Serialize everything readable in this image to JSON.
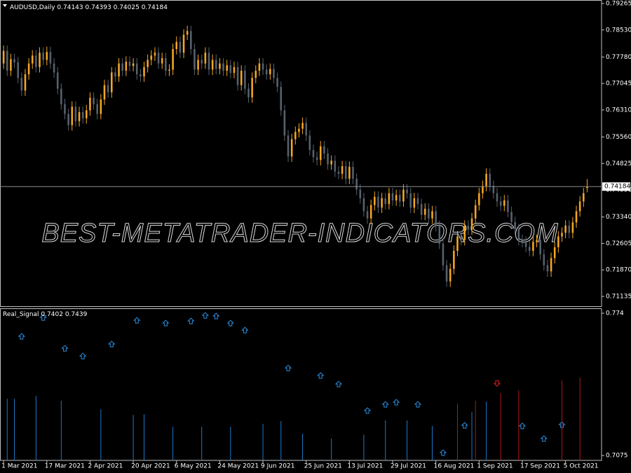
{
  "chart_data": [
    {
      "type": "candlestick",
      "title": "AUDUSD,Daily",
      "watermark": "BEST-METATRADER-INDICATORS.COM",
      "bull_color": "#f5a623",
      "bear_color": "#56626e",
      "ylim": [
        0.70863,
        0.79323
      ],
      "xlim": [
        -1,
        166
      ],
      "yticks": [
        0.79265,
        {
          "value": 0.7853,
          "label": "0.78530"
        },
        {
          "value": 0.7778,
          "label": "0.77780"
        },
        0.77045,
        {
          "value": 0.7631,
          "label": "0.76310"
        },
        {
          "value": 0.7556,
          "label": "0.75560"
        },
        0.74825,
        {
          "value": 0.7409,
          "label": "0.74090"
        },
        {
          "value": 0.7334,
          "label": "0.73340"
        },
        0.72605,
        {
          "value": 0.7187,
          "label": "0.71870"
        },
        0.71135
      ],
      "xticks": [
        {
          "value": 0,
          "label": "1 Mar 2021"
        },
        {
          "value": 12,
          "label": "17 Mar 2021"
        },
        {
          "value": 24,
          "label": "2 Apr 2021"
        },
        {
          "value": 36,
          "label": "20 Apr 2021"
        },
        {
          "value": 48,
          "label": "6 May 2021"
        },
        {
          "value": 60,
          "label": "24 May 2021"
        },
        {
          "value": 72,
          "label": "9 Jun 2021"
        },
        {
          "value": 84,
          "label": "25 Jun 2021"
        },
        {
          "value": 96,
          "label": "13 Jul 2021"
        },
        {
          "value": 108,
          "label": "29 Jul 2021"
        },
        {
          "value": 120,
          "label": "16 Aug 2021"
        },
        {
          "value": 132,
          "label": "1 Sep 2021"
        },
        {
          "value": 144,
          "label": "17 Sep 2021"
        },
        {
          "value": 156,
          "label": "5 Oct 2021"
        }
      ],
      "open": [
        0.776,
        0.7795,
        0.774,
        0.7772,
        0.7763,
        0.772,
        0.7685,
        0.773,
        0.776,
        0.7782,
        0.775,
        0.779,
        0.777,
        0.7792,
        0.776,
        0.7735,
        0.769,
        0.7647,
        0.762,
        0.7589,
        0.764,
        0.76,
        0.7625,
        0.7608,
        0.763,
        0.7665,
        0.7647,
        0.762,
        0.766,
        0.77,
        0.768,
        0.7735,
        0.7724,
        0.776,
        0.774,
        0.7765,
        0.7753,
        0.776,
        0.773,
        0.7724,
        0.775,
        0.777,
        0.7782,
        0.779,
        0.776,
        0.7775,
        0.774,
        0.7743,
        0.78,
        0.782,
        0.779,
        0.784,
        0.785,
        0.78,
        0.7743,
        0.777,
        0.776,
        0.779,
        0.7743,
        0.777,
        0.7745,
        0.776,
        0.774,
        0.7755,
        0.7734,
        0.775,
        0.77,
        0.774,
        0.769,
        0.7666,
        0.772,
        0.774,
        0.776,
        0.7743,
        0.773,
        0.7745,
        0.772,
        0.7695,
        0.763,
        0.756,
        0.7502,
        0.755,
        0.757,
        0.7579,
        0.7595,
        0.756,
        0.752,
        0.75,
        0.7492,
        0.753,
        0.751,
        0.748,
        0.749,
        0.746,
        0.7454,
        0.7475,
        0.744,
        0.7473,
        0.744,
        0.741,
        0.7386,
        0.735,
        0.733,
        0.7367,
        0.739,
        0.736,
        0.7386,
        0.737,
        0.74,
        0.738,
        0.7395,
        0.7377,
        0.741,
        0.74,
        0.736,
        0.7386,
        0.737,
        0.734,
        0.7357,
        0.733,
        0.735,
        0.7309,
        0.726,
        0.72,
        0.7155,
        0.719,
        0.724,
        0.728,
        0.727,
        0.731,
        0.7299,
        0.733,
        0.7367,
        0.74,
        0.742,
        0.7454,
        0.742,
        0.74,
        0.7377,
        0.7365,
        0.738,
        0.7348,
        0.732,
        0.73,
        0.727,
        0.7265,
        0.7251,
        0.724,
        0.7265,
        0.727,
        0.723,
        0.72,
        0.7183,
        0.722,
        0.725,
        0.728,
        0.729,
        0.731,
        0.729,
        0.7319,
        0.735,
        0.7377,
        0.74143
      ],
      "high": [
        0.781,
        0.781,
        0.7787,
        0.7787,
        0.7778,
        0.7735,
        0.7745,
        0.7775,
        0.7797,
        0.7797,
        0.7805,
        0.7805,
        0.7807,
        0.7807,
        0.7775,
        0.775,
        0.7705,
        0.7662,
        0.7635,
        0.7655,
        0.7655,
        0.764,
        0.764,
        0.7645,
        0.768,
        0.768,
        0.7662,
        0.7675,
        0.7715,
        0.7715,
        0.775,
        0.775,
        0.7775,
        0.7775,
        0.778,
        0.778,
        0.7775,
        0.7775,
        0.7745,
        0.7765,
        0.7785,
        0.7797,
        0.7805,
        0.7805,
        0.779,
        0.779,
        0.7758,
        0.7815,
        0.7835,
        0.7835,
        0.7855,
        0.7865,
        0.7865,
        0.7815,
        0.7785,
        0.7785,
        0.7805,
        0.7805,
        0.7785,
        0.7785,
        0.7775,
        0.7775,
        0.777,
        0.777,
        0.7765,
        0.7765,
        0.7755,
        0.7755,
        0.7705,
        0.7735,
        0.7755,
        0.7775,
        0.7775,
        0.7758,
        0.776,
        0.776,
        0.7735,
        0.771,
        0.7645,
        0.7575,
        0.7565,
        0.7585,
        0.7594,
        0.761,
        0.761,
        0.7575,
        0.7535,
        0.7515,
        0.7545,
        0.7545,
        0.7525,
        0.7505,
        0.7505,
        0.7475,
        0.749,
        0.749,
        0.7488,
        0.7488,
        0.7455,
        0.7425,
        0.7401,
        0.7365,
        0.7382,
        0.7405,
        0.7405,
        0.7401,
        0.7401,
        0.7415,
        0.7415,
        0.741,
        0.741,
        0.7425,
        0.7425,
        0.7415,
        0.7401,
        0.7401,
        0.7385,
        0.7372,
        0.7372,
        0.7365,
        0.7365,
        0.7324,
        0.7275,
        0.7215,
        0.7205,
        0.7255,
        0.7295,
        0.7295,
        0.7325,
        0.7325,
        0.7345,
        0.7382,
        0.7415,
        0.7435,
        0.7469,
        0.7469,
        0.7435,
        0.7415,
        0.7392,
        0.7395,
        0.7395,
        0.7363,
        0.7335,
        0.7315,
        0.7285,
        0.728,
        0.7266,
        0.728,
        0.7285,
        0.7285,
        0.7245,
        0.7215,
        0.7235,
        0.7265,
        0.7295,
        0.7305,
        0.7325,
        0.7325,
        0.7334,
        0.7365,
        0.7392,
        0.7415,
        0.74393
      ],
      "low": [
        0.7745,
        0.7725,
        0.7725,
        0.7748,
        0.7705,
        0.767,
        0.767,
        0.7715,
        0.7745,
        0.7735,
        0.7735,
        0.7755,
        0.7755,
        0.7745,
        0.772,
        0.7675,
        0.7632,
        0.7605,
        0.7574,
        0.7574,
        0.7585,
        0.7585,
        0.7593,
        0.7593,
        0.7615,
        0.7632,
        0.7605,
        0.7605,
        0.7645,
        0.7665,
        0.7665,
        0.7709,
        0.7709,
        0.7725,
        0.7725,
        0.7738,
        0.7738,
        0.7715,
        0.7709,
        0.7709,
        0.7735,
        0.7755,
        0.7767,
        0.7745,
        0.7745,
        0.7725,
        0.7725,
        0.7728,
        0.7785,
        0.7775,
        0.7775,
        0.7825,
        0.7785,
        0.7728,
        0.7728,
        0.7745,
        0.7745,
        0.7728,
        0.7728,
        0.773,
        0.773,
        0.7725,
        0.7725,
        0.7719,
        0.7719,
        0.7685,
        0.7685,
        0.7675,
        0.7651,
        0.7651,
        0.7705,
        0.7725,
        0.7728,
        0.7715,
        0.7715,
        0.7705,
        0.768,
        0.7615,
        0.7545,
        0.7487,
        0.7487,
        0.7535,
        0.7555,
        0.7564,
        0.7545,
        0.7505,
        0.7485,
        0.7477,
        0.7477,
        0.7495,
        0.7465,
        0.7465,
        0.7445,
        0.7439,
        0.7439,
        0.7425,
        0.7425,
        0.7425,
        0.7395,
        0.7371,
        0.7335,
        0.7315,
        0.7315,
        0.7352,
        0.7345,
        0.7345,
        0.7355,
        0.7355,
        0.7365,
        0.7365,
        0.7362,
        0.7362,
        0.7385,
        0.7345,
        0.7345,
        0.7355,
        0.7325,
        0.7325,
        0.7315,
        0.7315,
        0.7294,
        0.7245,
        0.7185,
        0.714,
        0.714,
        0.7175,
        0.7225,
        0.7255,
        0.7255,
        0.7284,
        0.7284,
        0.7315,
        0.7352,
        0.7385,
        0.7405,
        0.7405,
        0.7385,
        0.7362,
        0.735,
        0.735,
        0.7333,
        0.7305,
        0.7285,
        0.7255,
        0.725,
        0.7236,
        0.7225,
        0.7225,
        0.725,
        0.7215,
        0.7185,
        0.7168,
        0.7168,
        0.7205,
        0.7235,
        0.7265,
        0.7275,
        0.7275,
        0.7275,
        0.7304,
        0.7335,
        0.7362,
        0.74025
      ],
      "close": [
        0.7795,
        0.774,
        0.7772,
        0.7763,
        0.772,
        0.7685,
        0.773,
        0.776,
        0.7782,
        0.775,
        0.779,
        0.777,
        0.7792,
        0.776,
        0.7735,
        0.769,
        0.7647,
        0.762,
        0.7589,
        0.764,
        0.76,
        0.7625,
        0.7608,
        0.763,
        0.7665,
        0.7647,
        0.762,
        0.766,
        0.77,
        0.768,
        0.7735,
        0.7724,
        0.776,
        0.774,
        0.7765,
        0.7753,
        0.776,
        0.773,
        0.7724,
        0.775,
        0.777,
        0.7782,
        0.779,
        0.776,
        0.7775,
        0.774,
        0.7743,
        0.78,
        0.782,
        0.779,
        0.784,
        0.785,
        0.78,
        0.7743,
        0.777,
        0.776,
        0.779,
        0.7743,
        0.777,
        0.7745,
        0.776,
        0.774,
        0.7755,
        0.7734,
        0.775,
        0.77,
        0.774,
        0.769,
        0.7666,
        0.772,
        0.774,
        0.776,
        0.7743,
        0.773,
        0.7745,
        0.772,
        0.7695,
        0.763,
        0.756,
        0.7502,
        0.755,
        0.757,
        0.7579,
        0.7595,
        0.756,
        0.752,
        0.75,
        0.7492,
        0.753,
        0.751,
        0.748,
        0.749,
        0.746,
        0.7454,
        0.7475,
        0.744,
        0.7473,
        0.744,
        0.741,
        0.7386,
        0.735,
        0.733,
        0.7367,
        0.739,
        0.736,
        0.7386,
        0.737,
        0.74,
        0.738,
        0.7395,
        0.7377,
        0.741,
        0.74,
        0.736,
        0.7386,
        0.737,
        0.734,
        0.7357,
        0.733,
        0.735,
        0.7309,
        0.726,
        0.72,
        0.7155,
        0.719,
        0.724,
        0.728,
        0.727,
        0.731,
        0.7299,
        0.733,
        0.7367,
        0.74,
        0.742,
        0.7454,
        0.742,
        0.74,
        0.7377,
        0.7365,
        0.738,
        0.7348,
        0.732,
        0.73,
        0.727,
        0.7265,
        0.7251,
        0.724,
        0.7265,
        0.727,
        0.723,
        0.72,
        0.7183,
        0.722,
        0.725,
        0.728,
        0.729,
        0.731,
        0.729,
        0.7319,
        0.735,
        0.7377,
        0.74,
        0.74184
      ]
    },
    {
      "type": "signal",
      "title": "Real_Signal",
      "header_values": [
        0.7402,
        0.7439
      ],
      "ylim": [
        0.70521,
        0.7763
      ],
      "xlim": [
        -1,
        166
      ],
      "yticks": [
        0.774,
        0.7075
      ],
      "series": [
        {
          "marker": "arrow-up",
          "color": "#2a8fe0",
          "x": [
            5,
            11,
            17,
            22,
            30,
            37,
            45,
            52,
            56,
            59,
            63,
            67,
            79,
            88,
            93,
            101,
            106,
            109,
            115,
            122,
            128,
            144,
            150,
            155
          ],
          "values": [
            0.7632,
            0.772,
            0.7576,
            0.754,
            0.7596,
            0.7707,
            0.7694,
            0.7704,
            0.773,
            0.7727,
            0.7694,
            0.7661,
            0.7484,
            0.7449,
            0.7409,
            0.7285,
            0.7314,
            0.7324,
            0.7314,
            0.7088,
            0.7216,
            0.7213,
            0.7154,
            0.7219
          ]
        },
        {
          "marker": "arrow-down",
          "color": "#e02020",
          "x": [
            137
          ],
          "values": [
            0.7412
          ]
        },
        {
          "marker": "bar",
          "color": "#1e78c8",
          "x": [
            1,
            3,
            9,
            16,
            27,
            36,
            39,
            47,
            55,
            63,
            72,
            77,
            83,
            91,
            100,
            106,
            112,
            119,
            130,
            134
          ],
          "values": [
            0.734,
            0.734,
            0.7354,
            0.7331,
            0.7291,
            0.7265,
            0.7268,
            0.7209,
            0.7209,
            0.7209,
            0.7223,
            0.7236,
            0.7177,
            0.7154,
            0.7173,
            0.7239,
            0.7239,
            0.7213,
            0.7278,
            0.7327
          ]
        },
        {
          "marker": "bar",
          "color": "#b01818",
          "x": [
            126,
            131,
            138,
            143,
            155,
            160
          ],
          "values": [
            0.7317,
            0.7331,
            0.7367,
            0.738,
            0.7426,
            0.7439
          ]
        }
      ]
    }
  ]
}
